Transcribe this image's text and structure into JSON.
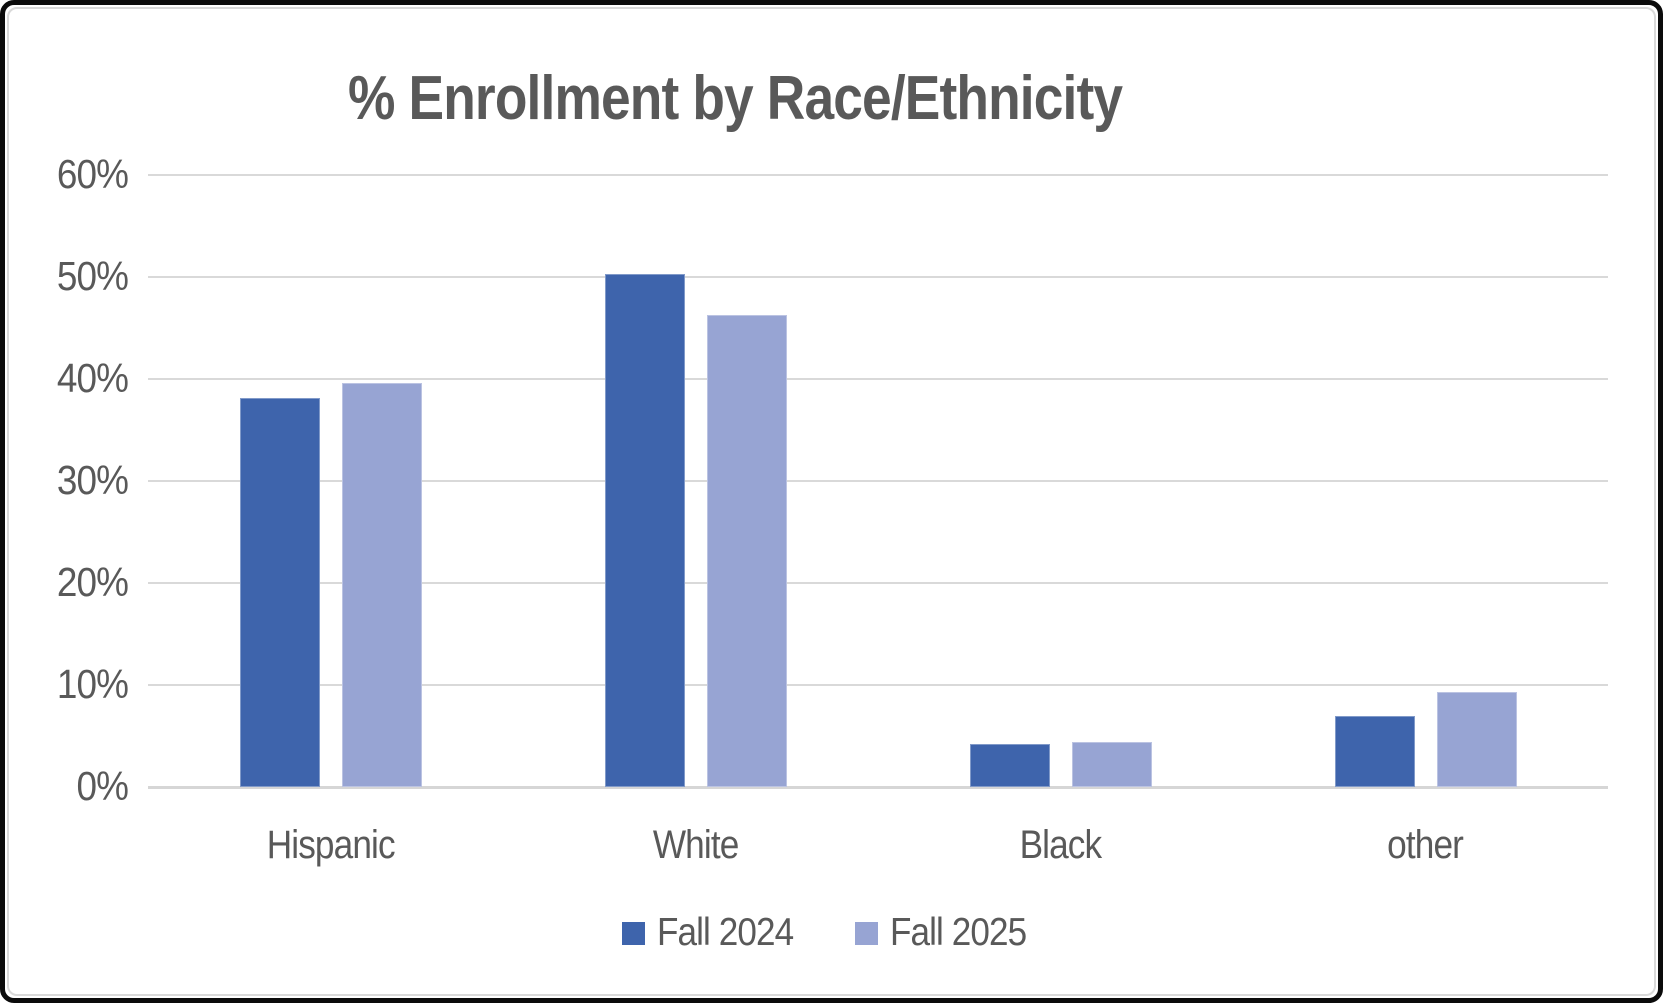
{
  "chart_data": {
    "type": "bar",
    "title": "% Enrollment by Race/Ethnicity",
    "categories": [
      "Hispanic",
      "White",
      "Black",
      "other"
    ],
    "series": [
      {
        "name": "Fall 2024",
        "color": "#3E64AC",
        "values": [
          38.1,
          50.3,
          4.2,
          7.0
        ]
      },
      {
        "name": "Fall 2025",
        "color": "#97A4D3",
        "values": [
          39.6,
          46.3,
          4.4,
          9.3
        ]
      }
    ],
    "xlabel": "",
    "ylabel": "",
    "ylim": [
      0,
      60
    ],
    "ytick_values": [
      0,
      10,
      20,
      30,
      40,
      50,
      60
    ],
    "ytick_labels": [
      "0%",
      "10%",
      "20%",
      "30%",
      "40%",
      "50%",
      "60%"
    ],
    "grid": "horizontal",
    "legend_position": "bottom",
    "colors": {
      "text": "#595959",
      "gridline": "#D9D9D9",
      "background": "#FFFFFF",
      "frame": "#0B0B0B"
    }
  }
}
